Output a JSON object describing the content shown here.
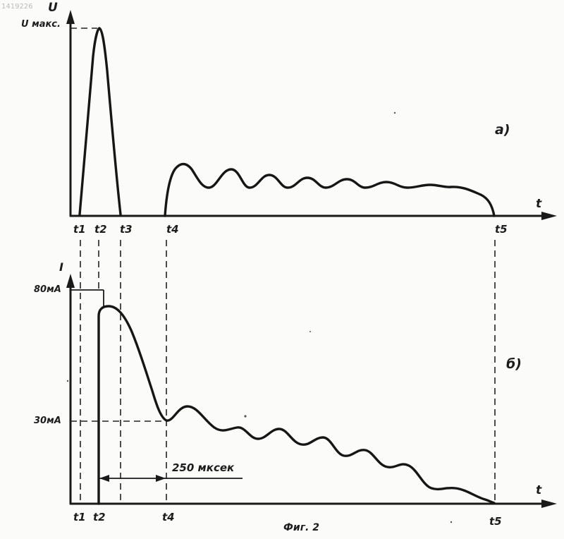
{
  "watermark": "1419226",
  "top_plot": {
    "y_axis_label": "U",
    "ymax_label": "U макс.",
    "x_axis_label": "t",
    "panel_label": "а)",
    "t_labels": [
      "t1",
      "t2",
      "t3",
      "t4",
      "t5"
    ]
  },
  "bottom_plot": {
    "y_axis_label": "I",
    "tick_80": "80мА",
    "tick_30": "30мА",
    "x_axis_label": "t",
    "panel_label": "б)",
    "duration_label": "250 мксек",
    "t_labels": [
      "t1",
      "t2",
      "t4",
      "t5"
    ]
  },
  "caption": "Фиг. 2"
}
